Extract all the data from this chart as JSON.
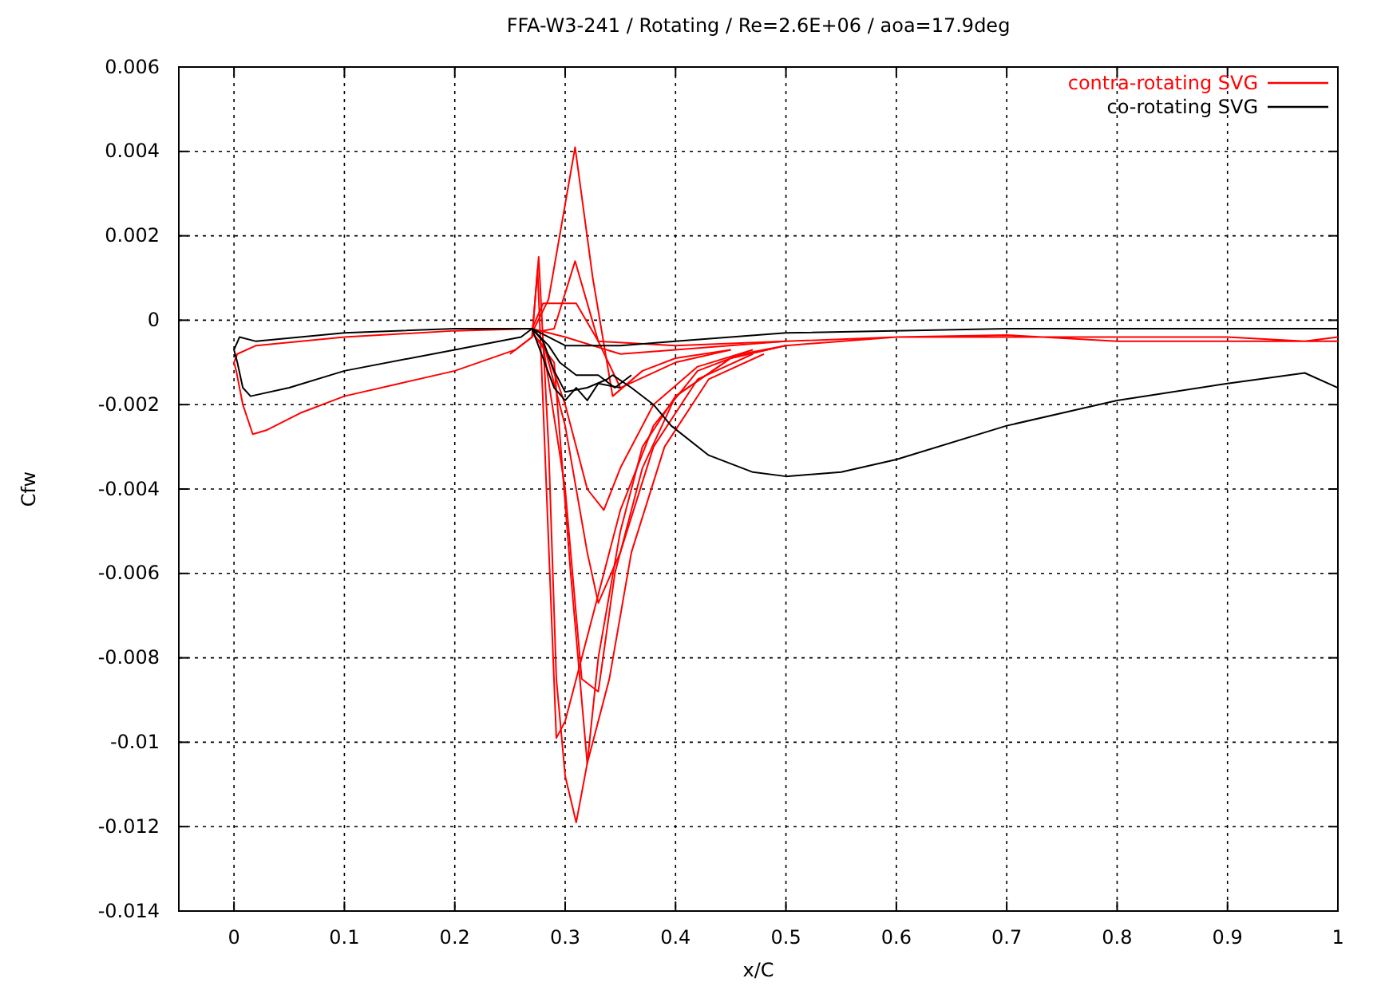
{
  "chart_data": {
    "type": "line",
    "title": "FFA-W3-241 / Rotating / Re=2.6E+06 / aoa=17.9deg",
    "xlabel": "x/C",
    "ylabel": "Cfw",
    "xlim": [
      -0.05,
      1
    ],
    "xticks": [
      0,
      0.1,
      0.2,
      0.3,
      0.4,
      0.5,
      0.6,
      0.7,
      0.8,
      0.9,
      1
    ],
    "ylim": [
      -0.014,
      0.006
    ],
    "yticks": [
      -0.014,
      -0.012,
      -0.01,
      -0.008,
      -0.006,
      -0.004,
      -0.002,
      0,
      0.002,
      0.004,
      0.006
    ],
    "grid": true,
    "legend": "top right",
    "series": [
      {
        "name": "contra-rotating SVG",
        "color": "#ff0000",
        "x": [
          1.0,
          0.9,
          0.8,
          0.7,
          0.6,
          0.5,
          0.4,
          0.35,
          0.3,
          0.27,
          0.2,
          0.1,
          0.02,
          0.003,
          0.0,
          0.002,
          0.008,
          0.017,
          0.03,
          0.06,
          0.1,
          0.15,
          0.2,
          0.255,
          0.27,
          0.276,
          0.285,
          0.292,
          0.3,
          0.31,
          0.32,
          0.33,
          0.35,
          0.37,
          0.4,
          0.45,
          0.5,
          0.6,
          0.7,
          0.8,
          0.9,
          0.97,
          1.0
        ],
        "values": [
          -0.0005,
          -0.0005,
          -0.0005,
          -0.00035,
          -0.0004,
          -0.0005,
          -0.0007,
          -0.0008,
          -0.0004,
          -0.0002,
          -0.00025,
          -0.0004,
          -0.0006,
          -0.0008,
          -0.001,
          -0.0012,
          -0.002,
          -0.0027,
          -0.0026,
          -0.0022,
          -0.0018,
          -0.0015,
          -0.0012,
          -0.0007,
          -0.0004,
          0.0015,
          -0.003,
          -0.0085,
          -0.0108,
          -0.0119,
          -0.0105,
          -0.008,
          -0.005,
          -0.003,
          -0.0018,
          -0.0009,
          -0.0006,
          -0.0004,
          -0.0004,
          -0.0004,
          -0.0004,
          -0.0005,
          -0.0004
        ]
      },
      {
        "color": "#ff0000",
        "x": [
          0.25,
          0.27,
          0.275,
          0.28,
          0.292,
          0.3,
          0.32,
          0.35,
          0.38,
          0.42,
          0.46,
          0.5
        ],
        "values": [
          -0.0008,
          -0.0004,
          0.0012,
          -0.002,
          -0.0099,
          -0.0095,
          -0.0075,
          -0.0045,
          -0.0025,
          -0.0012,
          -0.0008,
          -0.0006
        ]
      },
      {
        "color": "#ff0000",
        "x": [
          0.27,
          0.28,
          0.3,
          0.315,
          0.33,
          0.345,
          0.37,
          0.4,
          0.45,
          0.5
        ],
        "values": [
          -0.0003,
          -0.0006,
          -0.004,
          -0.0085,
          -0.0088,
          -0.006,
          -0.0035,
          -0.0018,
          -0.0009,
          -0.0006
        ]
      },
      {
        "color": "#ff0000",
        "x": [
          0.27,
          0.285,
          0.309,
          0.325,
          0.343,
          0.37,
          0.4,
          0.45
        ],
        "values": [
          -0.0003,
          0.0005,
          0.0041,
          0.001,
          -0.0018,
          -0.0012,
          -0.0009,
          -0.0007
        ]
      },
      {
        "color": "#ff0000",
        "x": [
          0.27,
          0.29,
          0.309,
          0.33,
          0.35,
          0.4,
          0.45
        ],
        "values": [
          -0.0003,
          -0.0002,
          0.0014,
          -0.0005,
          -0.0016,
          -0.001,
          -0.0007
        ]
      },
      {
        "color": "#ff0000",
        "x": [
          0.28,
          0.3,
          0.32,
          0.33,
          0.35,
          0.38,
          0.42,
          0.47
        ],
        "values": [
          -0.0005,
          -0.0025,
          -0.0055,
          -0.0067,
          -0.0055,
          -0.003,
          -0.0014,
          -0.0008
        ]
      },
      {
        "color": "#ff0000",
        "x": [
          0.28,
          0.3,
          0.32,
          0.335,
          0.35,
          0.38,
          0.42,
          0.47
        ],
        "values": [
          -0.0005,
          -0.002,
          -0.004,
          -0.0045,
          -0.0035,
          -0.002,
          -0.0011,
          -0.0007
        ]
      },
      {
        "color": "#ff0000",
        "x": [
          0.27,
          0.29,
          0.305,
          0.32,
          0.34,
          0.36,
          0.39,
          0.43,
          0.48
        ],
        "values": [
          -0.0003,
          -0.001,
          -0.006,
          -0.0105,
          -0.0085,
          -0.0055,
          -0.003,
          -0.0014,
          -0.0008
        ]
      },
      {
        "color": "#ff0000",
        "x": [
          0.27,
          0.28,
          0.31,
          0.33,
          0.4,
          0.5
        ],
        "values": [
          -0.0002,
          0.0004,
          0.0004,
          -0.0005,
          -0.0006,
          -0.0005
        ]
      },
      {
        "name": "co-rotating SVG",
        "color": "#000000",
        "x": [
          1.0,
          0.9,
          0.7,
          0.5,
          0.4,
          0.35,
          0.3,
          0.27,
          0.2,
          0.1,
          0.02,
          0.005,
          0.0,
          0.003,
          0.008,
          0.015,
          0.05,
          0.1,
          0.2,
          0.26,
          0.27,
          0.28,
          0.29,
          0.3,
          0.32,
          0.338,
          0.343,
          0.36,
          0.38,
          0.396,
          0.43,
          0.47,
          0.5,
          0.55,
          0.6,
          0.7,
          0.8,
          0.9,
          0.97,
          1.0
        ],
        "values": [
          -0.0002,
          -0.0002,
          -0.0002,
          -0.0003,
          -0.0005,
          -0.0006,
          -0.0006,
          -0.0002,
          -0.0002,
          -0.0003,
          -0.0005,
          -0.0004,
          -0.0007,
          -0.001,
          -0.0016,
          -0.0018,
          -0.0016,
          -0.0012,
          -0.0007,
          -0.0004,
          -0.0002,
          -0.0005,
          -0.0012,
          -0.0017,
          -0.0016,
          -0.0014,
          -0.0013,
          -0.0016,
          -0.002,
          -0.0025,
          -0.0032,
          -0.0036,
          -0.0037,
          -0.0036,
          -0.0033,
          -0.0025,
          -0.0019,
          -0.0015,
          -0.00125,
          -0.0016
        ]
      },
      {
        "color": "#000000",
        "x": [
          0.27,
          0.28,
          0.29,
          0.3,
          0.31,
          0.32,
          0.33,
          0.35
        ],
        "values": [
          -0.0002,
          -0.0009,
          -0.0016,
          -0.0019,
          -0.0016,
          -0.0019,
          -0.0015,
          -0.0016
        ]
      },
      {
        "color": "#000000",
        "x": [
          0.27,
          0.285,
          0.295,
          0.31,
          0.33,
          0.345,
          0.36
        ],
        "values": [
          -0.0002,
          -0.0006,
          -0.001,
          -0.0013,
          -0.0013,
          -0.0016,
          -0.0013
        ]
      }
    ]
  }
}
